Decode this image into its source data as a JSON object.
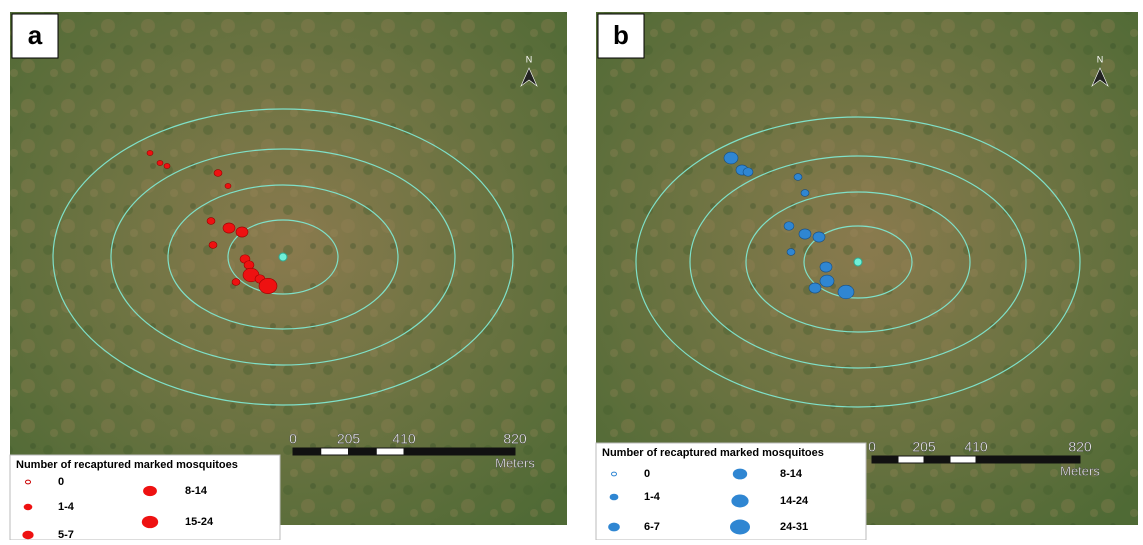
{
  "panels": [
    {
      "label": "a",
      "north": "N",
      "scale": {
        "ticks": [
          "0",
          "205",
          "410",
          "820"
        ],
        "unit": "Meters"
      },
      "legend": {
        "title": "Number of recaptured marked mosquitoes",
        "items": [
          "0",
          "1-4",
          "5-7",
          "8-14",
          "15-24"
        ]
      }
    },
    {
      "label": "b",
      "north": "N",
      "scale": {
        "ticks": [
          "0",
          "205",
          "410",
          "820"
        ],
        "unit": "Meters"
      },
      "legend": {
        "title": "Number of recaptured marked mosquitoes",
        "items": [
          "0",
          "1-4",
          "6-7",
          "8-14",
          "14-24",
          "24-31"
        ]
      }
    }
  ]
}
